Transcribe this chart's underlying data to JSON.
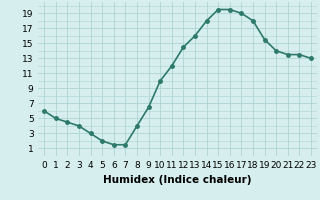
{
  "x": [
    0,
    1,
    2,
    3,
    4,
    5,
    6,
    7,
    8,
    9,
    10,
    11,
    12,
    13,
    14,
    15,
    16,
    17,
    18,
    19,
    20,
    21,
    22,
    23
  ],
  "y": [
    6,
    5,
    4.5,
    4,
    3,
    2,
    1.5,
    1.5,
    4,
    6.5,
    10,
    12,
    14.5,
    16,
    18,
    19.5,
    19.5,
    19,
    18,
    15.5,
    14,
    13.5,
    13.5,
    13
  ],
  "line_color": "#2d7a6b",
  "marker_color": "#2d7a6b",
  "bg_color": "#d6eeee",
  "grid_color": "#aed4d4",
  "xlabel": "Humidex (Indice chaleur)",
  "yticks": [
    1,
    3,
    5,
    7,
    9,
    11,
    13,
    15,
    17,
    19
  ],
  "xticks": [
    0,
    1,
    2,
    3,
    4,
    5,
    6,
    7,
    8,
    9,
    10,
    11,
    12,
    13,
    14,
    15,
    16,
    17,
    18,
    19,
    20,
    21,
    22,
    23
  ],
  "xlim": [
    -0.5,
    23.5
  ],
  "ylim": [
    0,
    20.5
  ],
  "xlabel_fontsize": 7.5,
  "tick_fontsize": 6.5,
  "linewidth": 1.2,
  "markersize": 2.5
}
